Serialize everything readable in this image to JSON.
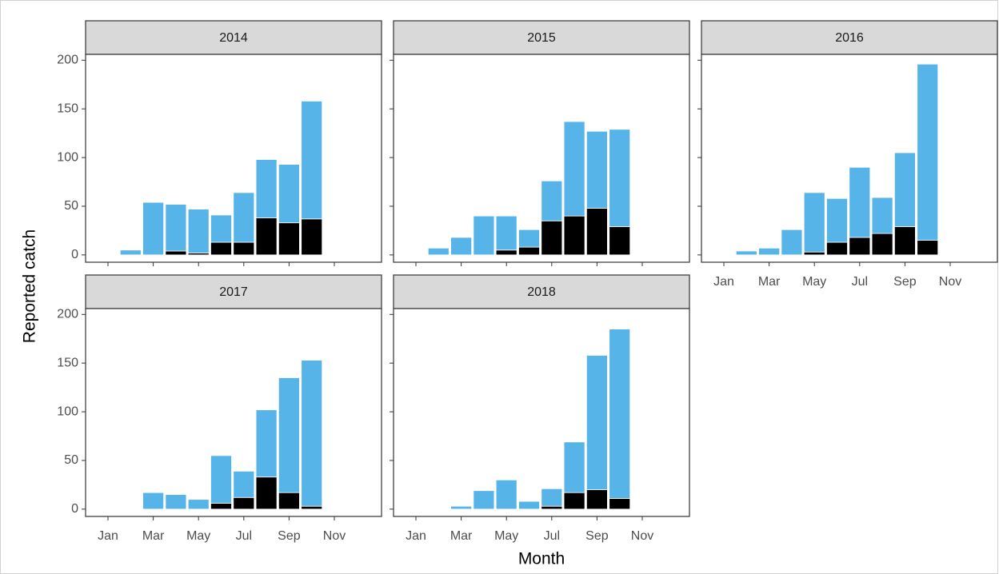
{
  "ylabel": "Reported catch",
  "xlabel": "Month",
  "chart_data": [
    {
      "type": "bar",
      "title": "2014",
      "stacked": true,
      "categories": [
        "Jan",
        null,
        "Mar",
        null,
        "May",
        null,
        "Jul",
        null,
        "Sep",
        null,
        "Nov",
        null
      ],
      "series": [
        {
          "color": "#000000",
          "values": [
            null,
            0,
            0,
            4,
            2,
            13,
            13,
            38,
            33,
            37,
            null,
            null
          ]
        },
        {
          "color": "#56b4e9",
          "values": [
            null,
            5,
            54,
            48,
            45,
            28,
            51,
            60,
            60,
            121,
            null,
            null
          ]
        }
      ],
      "ylim": [
        -7.5,
        206
      ],
      "yticks": [
        0,
        50,
        100,
        150,
        200
      ]
    },
    {
      "type": "bar",
      "title": "2015",
      "stacked": true,
      "categories": [
        "Jan",
        null,
        "Mar",
        null,
        "May",
        null,
        "Jul",
        null,
        "Sep",
        null,
        "Nov",
        null
      ],
      "series": [
        {
          "color": "#000000",
          "values": [
            null,
            0,
            0,
            0,
            5,
            8,
            35,
            40,
            48,
            29,
            null,
            null
          ]
        },
        {
          "color": "#56b4e9",
          "values": [
            null,
            7,
            18,
            40,
            35,
            18,
            41,
            97,
            79,
            100,
            null,
            null
          ]
        }
      ],
      "ylim": [
        -7.5,
        206
      ],
      "yticks": [
        0,
        50,
        100,
        150,
        200
      ]
    },
    {
      "type": "bar",
      "title": "2016",
      "stacked": true,
      "categories": [
        "Jan",
        null,
        "Mar",
        null,
        "May",
        null,
        "Jul",
        null,
        "Sep",
        null,
        "Nov",
        null
      ],
      "series": [
        {
          "color": "#000000",
          "values": [
            null,
            0,
            0,
            0,
            3,
            13,
            18,
            22,
            29,
            15,
            null,
            null
          ]
        },
        {
          "color": "#56b4e9",
          "values": [
            null,
            4,
            7,
            26,
            61,
            45,
            72,
            37,
            76,
            181,
            null,
            null
          ]
        }
      ],
      "ylim": [
        -7.5,
        206
      ],
      "yticks": [
        0,
        50,
        100,
        150,
        200
      ]
    },
    {
      "type": "bar",
      "title": "2017",
      "stacked": true,
      "categories": [
        "Jan",
        null,
        "Mar",
        null,
        "May",
        null,
        "Jul",
        null,
        "Sep",
        null,
        "Nov",
        null
      ],
      "series": [
        {
          "color": "#000000",
          "values": [
            null,
            null,
            0,
            0,
            0,
            6,
            12,
            33,
            17,
            3,
            null,
            null
          ]
        },
        {
          "color": "#56b4e9",
          "values": [
            null,
            null,
            17,
            15,
            10,
            49,
            27,
            69,
            118,
            150,
            null,
            null
          ]
        }
      ],
      "ylim": [
        -7.5,
        206
      ],
      "yticks": [
        0,
        50,
        100,
        150,
        200
      ]
    },
    {
      "type": "bar",
      "title": "2018",
      "stacked": true,
      "categories": [
        "Jan",
        null,
        "Mar",
        null,
        "May",
        null,
        "Jul",
        null,
        "Sep",
        null,
        "Nov",
        null
      ],
      "series": [
        {
          "color": "#000000",
          "values": [
            null,
            null,
            0,
            0,
            0,
            0,
            3,
            17,
            20,
            11,
            null,
            null
          ]
        },
        {
          "color": "#56b4e9",
          "values": [
            null,
            null,
            3,
            19,
            30,
            8,
            18,
            52,
            138,
            174,
            null,
            null
          ]
        }
      ],
      "ylim": [
        -7.5,
        206
      ],
      "yticks": [
        0,
        50,
        100,
        150,
        200
      ]
    }
  ]
}
